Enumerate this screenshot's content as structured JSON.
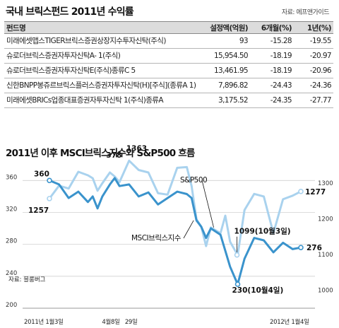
{
  "table": {
    "title": "국내 브릭스펀드 2011년 수익률",
    "source": "자료: 에프앤가이드",
    "headers": [
      "펀드명",
      "설정액(억원)",
      "6개월(%)",
      "1년(%)"
    ],
    "rows": [
      {
        "name": "미래에셋맵스TIGER브릭스증권상장지수투자신탁(주식)",
        "amount": "93",
        "m6": "-15.28",
        "y1": "-19.55"
      },
      {
        "name": "슈로더브릭스증권자투자신탁A- 1(주식)",
        "amount": "15,954.50",
        "m6": "-18.19",
        "y1": "-20.97"
      },
      {
        "name": "슈로더브릭스증권자투자신탁E(주식)종류C 5",
        "amount": "13,461.95",
        "m6": "-18.19",
        "y1": "-20.96"
      },
      {
        "name": "신한BNPP봉쥬르브릭스플러스증권자투자신탁(H)[주식](종류A 1)",
        "amount": "7,896.82",
        "m6": "-24.43",
        "y1": "-24.36"
      },
      {
        "name": "미래에셋BRICs업종대표증권자투자신탁 1(주식)종류A",
        "amount": "3,175.52",
        "m6": "-24.35",
        "y1": "-27.77"
      }
    ]
  },
  "chart_data": {
    "type": "line",
    "title": "2011년 이후 MSCI브릭스지수와 S&P500 흐름",
    "source": "자료: 블룸버그",
    "x_tick_labels": [
      "2011년 1월3일",
      "4월8일",
      "29일",
      "2012년 1월4일"
    ],
    "y_left": {
      "ticks": [
        200,
        240,
        280,
        320,
        360
      ],
      "ylim": [
        200,
        370
      ]
    },
    "y_right": {
      "ticks": [
        1000,
        1100,
        1200,
        1300
      ],
      "ylim": [
        950,
        1330
      ]
    },
    "series": [
      {
        "name": "MSCI브릭스지수",
        "axis": "left",
        "color": "#3a93cc",
        "x": [
          "2011-01-03",
          "2011-01-17",
          "2011-01-31",
          "2011-02-14",
          "2011-02-28",
          "2011-03-07",
          "2011-03-14",
          "2011-03-21",
          "2011-04-01",
          "2011-04-08",
          "2011-04-15",
          "2011-04-29",
          "2011-05-13",
          "2011-05-27",
          "2011-06-10",
          "2011-06-24",
          "2011-07-08",
          "2011-07-22",
          "2011-07-29",
          "2011-08-05",
          "2011-08-12",
          "2011-08-19",
          "2011-08-26",
          "2011-09-09",
          "2011-09-16",
          "2011-09-23",
          "2011-10-04",
          "2011-10-14",
          "2011-10-28",
          "2011-11-11",
          "2011-11-25",
          "2011-12-09",
          "2011-12-23",
          "2012-01-04"
        ],
        "y": [
          360,
          355,
          338,
          346,
          333,
          340,
          325,
          340,
          355,
          363,
          353,
          355,
          340,
          345,
          330,
          338,
          346,
          343,
          338,
          310,
          302,
          288,
          300,
          292,
          272,
          252,
          230,
          262,
          288,
          285,
          270,
          282,
          274,
          276
        ]
      },
      {
        "name": "S&P500",
        "axis": "right",
        "color": "#a9d2ee",
        "x": [
          "2011-01-03",
          "2011-01-17",
          "2011-01-31",
          "2011-02-14",
          "2011-02-28",
          "2011-03-07",
          "2011-03-14",
          "2011-03-21",
          "2011-04-01",
          "2011-04-08",
          "2011-04-15",
          "2011-04-29",
          "2011-05-13",
          "2011-05-27",
          "2011-06-10",
          "2011-06-24",
          "2011-07-08",
          "2011-07-22",
          "2011-07-29",
          "2011-08-05",
          "2011-08-12",
          "2011-08-19",
          "2011-08-26",
          "2011-09-09",
          "2011-09-16",
          "2011-09-23",
          "2011-10-04",
          "2011-10-14",
          "2011-10-28",
          "2011-11-11",
          "2011-11-25",
          "2011-12-09",
          "2011-12-23",
          "2012-01-04"
        ],
        "y": [
          1257,
          1293,
          1285,
          1332,
          1322,
          1314,
          1279,
          1300,
          1330,
          1319,
          1303,
          1363,
          1337,
          1330,
          1272,
          1268,
          1343,
          1345,
          1292,
          1199,
          1178,
          1124,
          1176,
          1160,
          1209,
          1136,
          1099,
          1225,
          1270,
          1263,
          1160,
          1255,
          1265,
          1277
        ]
      }
    ],
    "annotations": [
      {
        "text": "360",
        "series": "MSCI브릭스지수",
        "x": "2011-01-03",
        "y": 360
      },
      {
        "text": "1257",
        "series": "S&P500",
        "x": "2011-01-03",
        "y": 1257
      },
      {
        "text": "378",
        "series": "MSCI브릭스지수",
        "x": "2011-04-08",
        "y": 378
      },
      {
        "text": "1363",
        "series": "S&P500",
        "x": "2011-04-29",
        "y": 1363
      },
      {
        "text": "1099(10월3일)",
        "series": "S&P500",
        "x": "2011-10-03",
        "y": 1099
      },
      {
        "text": "230(10월4일)",
        "series": "MSCI브릭스지수",
        "x": "2011-10-04",
        "y": 230
      },
      {
        "text": "1277",
        "series": "S&P500",
        "x": "2012-01-04",
        "y": 1277
      },
      {
        "text": "276",
        "series": "MSCI브릭스지수",
        "x": "2012-01-04",
        "y": 276
      }
    ]
  }
}
